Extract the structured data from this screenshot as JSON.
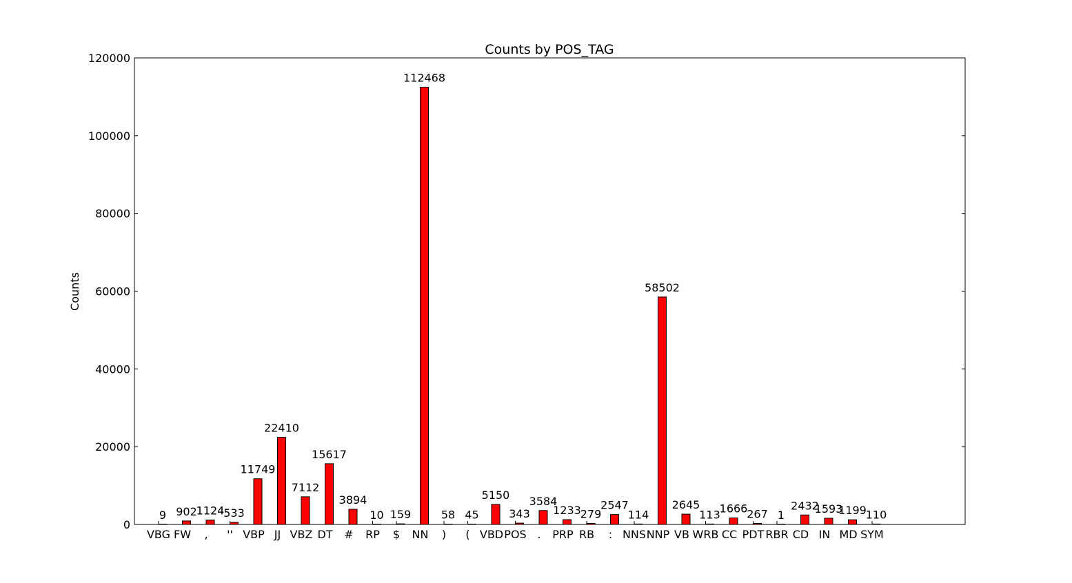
{
  "chart_data": {
    "type": "bar",
    "title": "Counts by POS_TAG",
    "xlabel": "",
    "ylabel": "Counts",
    "ylim": [
      0,
      120000
    ],
    "yticks": [
      0,
      20000,
      40000,
      60000,
      80000,
      100000,
      120000
    ],
    "categories": [
      "VBG",
      "FW",
      ",",
      "''",
      "VBP",
      "JJ",
      "VBZ",
      "DT",
      "#",
      "RP",
      "$",
      "NN",
      ")",
      "(",
      "VBD",
      "POS",
      ".",
      "PRP",
      "RB",
      ":",
      "NNS",
      "NNP",
      "VB",
      "WRB",
      "CC",
      "PDT",
      "RBR",
      "CD",
      "IN",
      "MD",
      "SYM"
    ],
    "values": [
      9,
      902,
      1124,
      533,
      11749,
      22410,
      7112,
      15617,
      3894,
      10,
      159,
      112468,
      58,
      45,
      5150,
      343,
      3584,
      1233,
      279,
      2547,
      114,
      58502,
      2645,
      113,
      1666,
      267,
      1,
      2432,
      1593,
      1199,
      110
    ],
    "bar_color": "#ff0000",
    "bar_edge_color": "#000000",
    "grid": false,
    "legend": "none"
  }
}
